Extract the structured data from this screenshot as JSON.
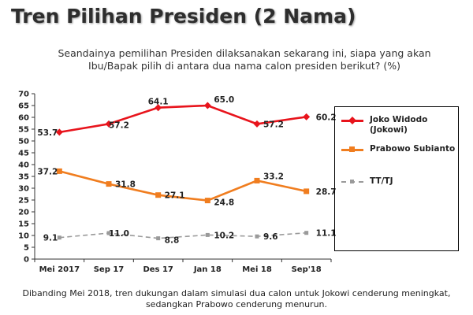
{
  "title": "Tren Pilihan Presiden (2 Nama)",
  "subtitle_line1": "Seandainya pemilihan Presiden dilaksanakan sekarang ini, siapa yang akan",
  "subtitle_line2": "Ibu/Bapak pilih di antara dua nama calon presiden berikut? (%)",
  "footnote": "Dibanding Mei 2018, tren dukungan dalam simulasi dua calon untuk Jokowi cenderung meningkat, sedangkan Prabowo cenderung menurun.",
  "chart_data": {
    "type": "line",
    "categories": [
      "Mei 2017",
      "Sep 17",
      "Des 17",
      "Jan 18",
      "Mei 18",
      "Sep'18"
    ],
    "ylim": [
      0,
      70
    ],
    "yticks": [
      0,
      5,
      10,
      15,
      20,
      25,
      30,
      35,
      40,
      45,
      50,
      55,
      60,
      65,
      70
    ],
    "grid": false,
    "legend_position": "right",
    "series": [
      {
        "name": "Joko Widodo\n(Jokowi)",
        "values": [
          53.7,
          57.2,
          64.1,
          65.0,
          57.2,
          60.2
        ],
        "color": "#e8141c",
        "marker": "diamond",
        "dashed": false
      },
      {
        "name": "Prabowo Subianto",
        "values": [
          37.2,
          31.8,
          27.1,
          24.8,
          33.2,
          28.7
        ],
        "color": "#f07d1f",
        "marker": "square",
        "dashed": false
      },
      {
        "name": "TT/TJ",
        "values": [
          9.1,
          11.0,
          8.8,
          10.2,
          9.6,
          11.1
        ],
        "color": "#9a9a9a",
        "marker": "square",
        "dashed": true
      }
    ],
    "labels": [
      [
        "53.7",
        "57.2",
        "64.1",
        "65.0",
        "57.2",
        "60.2"
      ],
      [
        "37.2",
        "31.8",
        "27.1",
        "24.8",
        "33.2",
        "28.7"
      ],
      [
        "9.1",
        "11.0",
        "8.8",
        "10.2",
        "9.6",
        "11.1"
      ]
    ]
  }
}
